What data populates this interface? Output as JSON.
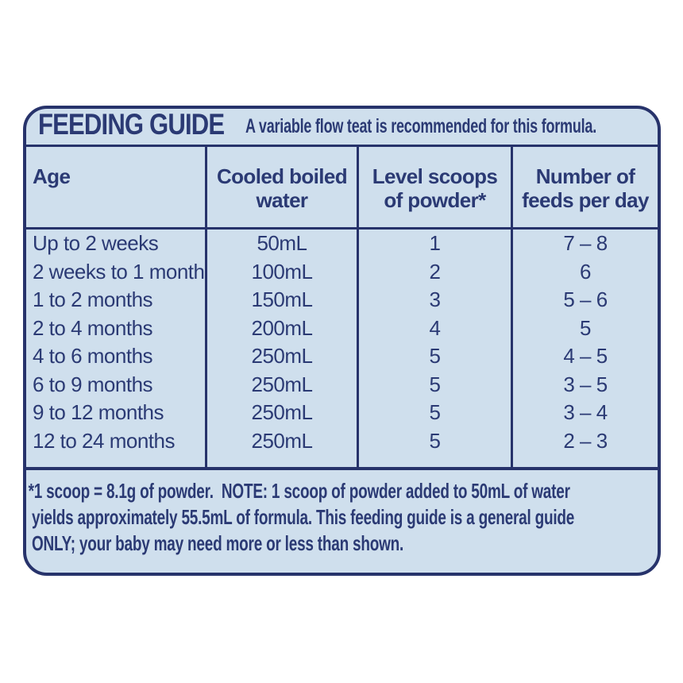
{
  "colors": {
    "navy": "#2b3a74",
    "card_bg": "#cfdfed",
    "page_bg": "#ffffff"
  },
  "card": {
    "title": "FEEDING GUIDE",
    "subtitle": "A variable flow teat is recommended for this formula."
  },
  "table": {
    "headers": [
      [
        "Age"
      ],
      [
        "Cooled boiled",
        "water"
      ],
      [
        "Level scoops",
        "of powder*"
      ],
      [
        "Number of",
        "feeds per day"
      ]
    ],
    "rows": [
      {
        "age": "Up to 2 weeks",
        "water": "50mL",
        "scoops": "1",
        "feeds": "7 – 8"
      },
      {
        "age": "2 weeks to 1 month",
        "water": "100mL",
        "scoops": "2",
        "feeds": "6"
      },
      {
        "age": "1 to 2 months",
        "water": "150mL",
        "scoops": "3",
        "feeds": "5 – 6"
      },
      {
        "age": "2 to 4 months",
        "water": "200mL",
        "scoops": "4",
        "feeds": "5"
      },
      {
        "age": "4 to 6 months",
        "water": "250mL",
        "scoops": "5",
        "feeds": "4 – 5"
      },
      {
        "age": "6 to 9 months",
        "water": "250mL",
        "scoops": "5",
        "feeds": "3 – 5"
      },
      {
        "age": "9 to 12 months",
        "water": "250mL",
        "scoops": "5",
        "feeds": "3 – 4"
      },
      {
        "age": "12 to 24 months",
        "water": "250mL",
        "scoops": "5",
        "feeds": "2 – 3"
      }
    ]
  },
  "footnote": {
    "lines": [
      "*1 scoop = 8.1g of powder.  NOTE: 1 scoop of powder added to 50mL of water",
      "yields approximately 55.5mL of formula. This feeding guide is a general guide",
      "ONLY; your baby may need more or less than shown."
    ]
  }
}
